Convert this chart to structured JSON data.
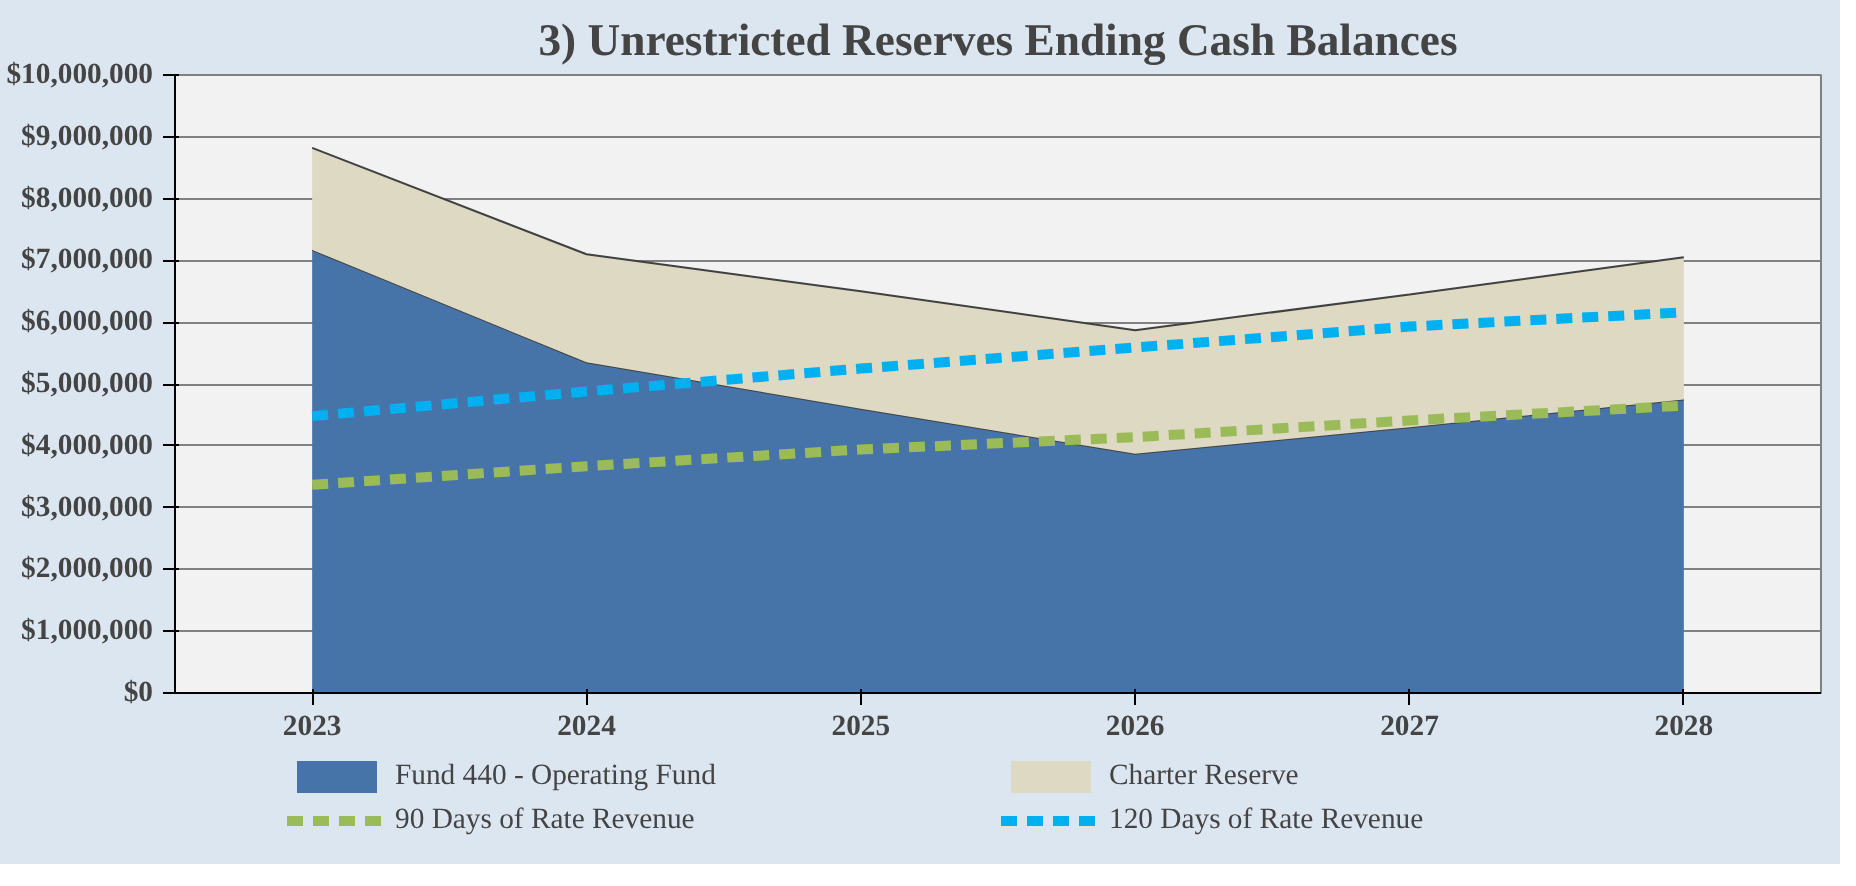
{
  "chart_data": {
    "type": "area",
    "title": "3) Unrestricted Reserves Ending Cash Balances",
    "categories": [
      "2023",
      "2024",
      "2025",
      "2026",
      "2027",
      "2028"
    ],
    "stacked": true,
    "series": [
      {
        "name": "Fund 440 - Operating Fund",
        "color": "#4673a8",
        "values": [
          7170000,
          5350000,
          4600000,
          3870000,
          4300000,
          4750000
        ]
      },
      {
        "name": "Charter Reserve",
        "color": "#ddd9c3",
        "values": [
          1650000,
          1750000,
          1900000,
          2000000,
          2150000,
          2300000
        ]
      },
      {
        "name": "90 Days of Rate Revenue",
        "type": "line",
        "line_style": "dashed",
        "color": "#9bbb59",
        "values": [
          3370000,
          3670000,
          3940000,
          4140000,
          4410000,
          4650000
        ]
      },
      {
        "name": "120 Days of Rate Revenue",
        "type": "line",
        "line_style": "dashed",
        "color": "#00b0f0",
        "values": [
          4480000,
          4880000,
          5250000,
          5590000,
          5930000,
          6160000
        ]
      }
    ],
    "ylim": [
      0,
      10000000
    ],
    "yticks": [
      {
        "value": 0,
        "label": "$0"
      },
      {
        "value": 1000000,
        "label": "$1,000,000"
      },
      {
        "value": 2000000,
        "label": "$2,000,000"
      },
      {
        "value": 3000000,
        "label": "$3,000,000"
      },
      {
        "value": 4000000,
        "label": "$4,000,000"
      },
      {
        "value": 5000000,
        "label": "$5,000,000"
      },
      {
        "value": 6000000,
        "label": "$6,000,000"
      },
      {
        "value": 7000000,
        "label": "$7,000,000"
      },
      {
        "value": 8000000,
        "label": "$8,000,000"
      },
      {
        "value": 9000000,
        "label": "$9,000,000"
      },
      {
        "value": 10000000,
        "label": "$10,000,000"
      }
    ],
    "grid": "y",
    "legend": "bottom"
  }
}
